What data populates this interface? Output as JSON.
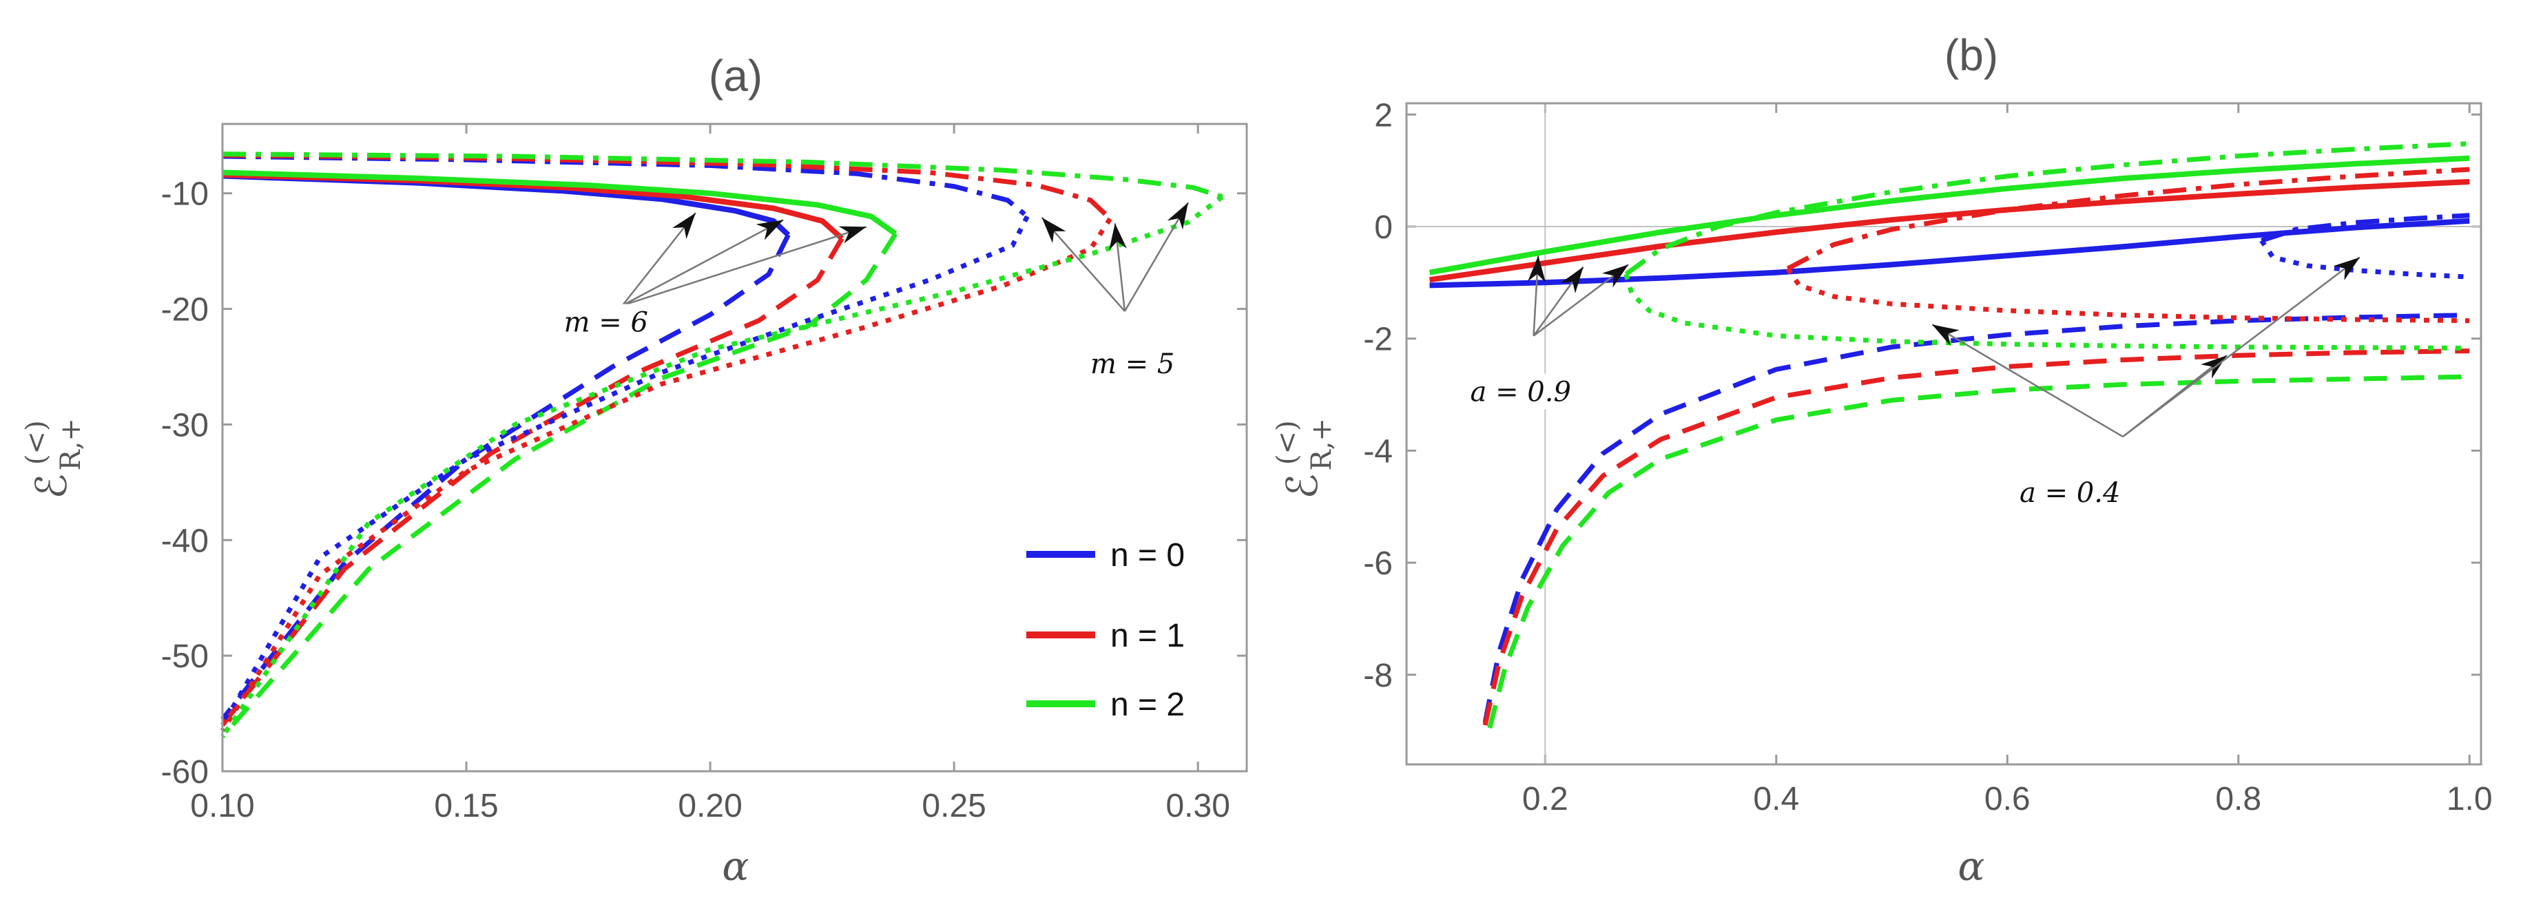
{
  "chart_data": [
    {
      "panel": "(a)",
      "type": "line",
      "title": "(a)",
      "xlabel": "α",
      "ylabel": {
        "main": "ℰ",
        "sub": "R,+",
        "sup": "(<)"
      },
      "xlim": [
        0.1,
        0.31
      ],
      "ylim": [
        -60,
        -4
      ],
      "xticks": [
        0.1,
        0.15,
        0.2,
        0.25,
        0.3
      ],
      "xtick_labels": [
        "0.10",
        "0.15",
        "0.20",
        "0.25",
        "0.30"
      ],
      "yticks": [
        -60,
        -50,
        -40,
        -30,
        -20,
        -10
      ],
      "ytick_labels": [
        "-60",
        "-50",
        "-40",
        "-30",
        "-20",
        "-10"
      ],
      "legend": {
        "placement": "bottom-right",
        "entries": [
          {
            "label": "n = 0",
            "color": "#1f1fe6"
          },
          {
            "label": "n = 1",
            "color": "#e61f1f"
          },
          {
            "label": "n = 2",
            "color": "#1fe61f"
          }
        ]
      },
      "annotations": [
        {
          "text": "m = 6",
          "targets": [
            [
              0.197,
              -11.7
            ],
            [
              0.215,
              -12.3
            ],
            [
              0.232,
              -12.9
            ]
          ]
        },
        {
          "text": "m = 5",
          "targets": [
            [
              0.268,
              -12.1
            ],
            [
              0.283,
              -12.6
            ],
            [
              0.298,
              -10.8
            ]
          ]
        }
      ],
      "series": [
        {
          "name": "n=0, m=6 upper",
          "color": "#1f1fe6",
          "style": "solid",
          "x": [
            0.1,
            0.14,
            0.17,
            0.19,
            0.205,
            0.213,
            0.216
          ],
          "y": [
            -8.5,
            -9.1,
            -9.8,
            -10.5,
            -11.5,
            -12.4,
            -13.6
          ]
        },
        {
          "name": "n=0, m=6 lower",
          "color": "#1f1fe6",
          "style": "dashed",
          "x": [
            0.216,
            0.212,
            0.2,
            0.18,
            0.15,
            0.125,
            0.1
          ],
          "y": [
            -13.6,
            -17,
            -20.5,
            -25,
            -33,
            -42,
            -55.5
          ]
        },
        {
          "name": "n=1, m=6 upper",
          "color": "#e61f1f",
          "style": "solid",
          "x": [
            0.1,
            0.14,
            0.17,
            0.195,
            0.213,
            0.223,
            0.227
          ],
          "y": [
            -8.4,
            -8.9,
            -9.5,
            -10.3,
            -11.3,
            -12.4,
            -13.9
          ]
        },
        {
          "name": "n=1, m=6 lower",
          "color": "#e61f1f",
          "style": "dashed",
          "x": [
            0.227,
            0.222,
            0.21,
            0.185,
            0.155,
            0.125,
            0.1
          ],
          "y": [
            -13.9,
            -17.5,
            -21,
            -25.5,
            -32.5,
            -42.5,
            -56
          ]
        },
        {
          "name": "n=2, m=6 upper",
          "color": "#1fe61f",
          "style": "solid",
          "x": [
            0.1,
            0.14,
            0.175,
            0.2,
            0.222,
            0.233,
            0.238
          ],
          "y": [
            -8.2,
            -8.7,
            -9.3,
            -10,
            -11,
            -12,
            -13.5
          ]
        },
        {
          "name": "n=2, m=6 lower",
          "color": "#1fe61f",
          "style": "dashed",
          "x": [
            0.238,
            0.232,
            0.22,
            0.19,
            0.16,
            0.13,
            0.1
          ],
          "y": [
            -13.5,
            -17.5,
            -21.5,
            -26,
            -33,
            -42.5,
            -57
          ]
        },
        {
          "name": "n=0, m=5 upper",
          "color": "#1f1fe6",
          "style": "dashdot",
          "x": [
            0.1,
            0.15,
            0.2,
            0.23,
            0.25,
            0.261,
            0.265
          ],
          "y": [
            -6.8,
            -7.1,
            -7.6,
            -8.3,
            -9.4,
            -10.6,
            -12
          ]
        },
        {
          "name": "n=0, m=5 lower",
          "color": "#1f1fe6",
          "style": "dotted",
          "x": [
            0.265,
            0.262,
            0.245,
            0.22,
            0.19,
            0.15,
            0.12,
            0.1
          ],
          "y": [
            -12,
            -14.5,
            -17.5,
            -21,
            -25.5,
            -33,
            -41.5,
            -56
          ]
        },
        {
          "name": "n=1, m=5 upper",
          "color": "#e61f1f",
          "style": "dashdot",
          "x": [
            0.1,
            0.16,
            0.21,
            0.245,
            0.267,
            0.278,
            0.282
          ],
          "y": [
            -6.7,
            -7,
            -7.5,
            -8.2,
            -9.3,
            -10.6,
            -12.2
          ]
        },
        {
          "name": "n=1, m=5 lower",
          "color": "#e61f1f",
          "style": "dotted",
          "x": [
            0.282,
            0.278,
            0.26,
            0.23,
            0.19,
            0.15,
            0.12,
            0.1
          ],
          "y": [
            -12.2,
            -14.8,
            -18,
            -21.8,
            -26.5,
            -34,
            -43,
            -56.5
          ]
        },
        {
          "name": "n=2, m=5 upper",
          "color": "#1fe61f",
          "style": "dashdot",
          "x": [
            0.1,
            0.16,
            0.22,
            0.26,
            0.285,
            0.299,
            0.305
          ],
          "y": [
            -6.6,
            -6.8,
            -7.3,
            -8,
            -8.8,
            -9.5,
            -10.3
          ]
        },
        {
          "name": "n=2, m=5 lower",
          "color": "#1fe61f",
          "style": "dotted",
          "x": [
            0.305,
            0.298,
            0.28,
            0.25,
            0.2,
            0.16,
            0.13,
            0.1
          ],
          "y": [
            -10.3,
            -12.5,
            -15,
            -18.5,
            -23.5,
            -30,
            -38.5,
            -57
          ]
        }
      ]
    },
    {
      "panel": "(b)",
      "type": "line",
      "title": "(b)",
      "xlabel": "α",
      "ylabel": {
        "main": "ℰ",
        "sub": "R,+",
        "sup": "(<)"
      },
      "xlim": [
        0.08,
        1.01
      ],
      "ylim": [
        -9.6,
        2.2
      ],
      "xticks": [
        0.2,
        0.4,
        0.6,
        0.8,
        1.0
      ],
      "xtick_labels": [
        "0.2",
        "0.4",
        "0.6",
        "0.8",
        "1.0"
      ],
      "yticks": [
        -8,
        -6,
        -4,
        -2,
        0,
        2
      ],
      "ytick_labels": [
        "-8",
        "-6",
        "-4",
        "-2",
        "0",
        "2"
      ],
      "reference_lines": {
        "x": 0.2,
        "y": 0
      },
      "annotations": [
        {
          "text": "a = 0.9",
          "targets": [
            [
              0.194,
              -0.52
            ],
            [
              0.233,
              -0.72
            ],
            [
              0.272,
              -0.68
            ]
          ]
        },
        {
          "text": "a = 0.4",
          "targets": [
            [
              0.535,
              -1.75
            ],
            [
              0.79,
              -2.3
            ],
            [
              0.905,
              -0.55
            ]
          ]
        }
      ],
      "series": [
        {
          "name": "n=0, a=0.9 solid",
          "color": "#1f1fe6",
          "style": "solid",
          "x": [
            0.1,
            0.2,
            0.3,
            0.4,
            0.5,
            0.6,
            0.7,
            0.8,
            0.9,
            1.0
          ],
          "y": [
            -1.05,
            -1.0,
            -0.92,
            -0.82,
            -0.68,
            -0.52,
            -0.36,
            -0.18,
            -0.02,
            0.1
          ]
        },
        {
          "name": "n=1, a=0.9 solid",
          "color": "#e61f1f",
          "style": "solid",
          "x": [
            0.1,
            0.2,
            0.3,
            0.4,
            0.5,
            0.6,
            0.7,
            0.8,
            0.9,
            1.0
          ],
          "y": [
            -0.95,
            -0.65,
            -0.35,
            -0.1,
            0.12,
            0.3,
            0.45,
            0.58,
            0.7,
            0.8
          ]
        },
        {
          "name": "n=2, a=0.9 solid",
          "color": "#1fe61f",
          "style": "solid",
          "x": [
            0.1,
            0.2,
            0.3,
            0.4,
            0.5,
            0.6,
            0.7,
            0.8,
            0.9,
            1.0
          ],
          "y": [
            -0.82,
            -0.45,
            -0.1,
            0.2,
            0.46,
            0.68,
            0.86,
            1.0,
            1.12,
            1.22
          ]
        },
        {
          "name": "n=0, a=0.9 dashed",
          "color": "#1f1fe6",
          "style": "dashed",
          "x": [
            0.148,
            0.16,
            0.18,
            0.21,
            0.25,
            0.3,
            0.4,
            0.5,
            0.6,
            0.7,
            0.8,
            0.9,
            1.0
          ],
          "y": [
            -8.85,
            -7.6,
            -6.3,
            -5.05,
            -4.05,
            -3.35,
            -2.55,
            -2.15,
            -1.93,
            -1.78,
            -1.68,
            -1.62,
            -1.58
          ]
        },
        {
          "name": "n=1, a=0.9 dashed",
          "color": "#e61f1f",
          "style": "dashed",
          "x": [
            0.148,
            0.16,
            0.18,
            0.21,
            0.25,
            0.3,
            0.4,
            0.5,
            0.6,
            0.7,
            0.8,
            0.9,
            1.0
          ],
          "y": [
            -8.9,
            -7.8,
            -6.6,
            -5.4,
            -4.45,
            -3.8,
            -3.05,
            -2.7,
            -2.5,
            -2.38,
            -2.3,
            -2.25,
            -2.22
          ]
        },
        {
          "name": "n=2, a=0.9 dashed",
          "color": "#1fe61f",
          "style": "dashed",
          "x": [
            0.152,
            0.165,
            0.185,
            0.215,
            0.255,
            0.3,
            0.4,
            0.5,
            0.6,
            0.7,
            0.8,
            0.9,
            1.0
          ],
          "y": [
            -8.95,
            -7.9,
            -6.8,
            -5.7,
            -4.75,
            -4.15,
            -3.45,
            -3.1,
            -2.92,
            -2.82,
            -2.76,
            -2.72,
            -2.68
          ]
        },
        {
          "name": "n=0, a=0.4 dashdot",
          "color": "#1f1fe6",
          "style": "dashdot",
          "x": [
            0.82,
            0.85,
            0.9,
            0.95,
            1.0
          ],
          "y": [
            -0.25,
            -0.05,
            0.07,
            0.14,
            0.2
          ]
        },
        {
          "name": "n=0, a=0.4 dotted",
          "color": "#1f1fe6",
          "style": "dotted",
          "x": [
            0.82,
            0.83,
            0.86,
            0.9,
            0.95,
            1.0
          ],
          "y": [
            -0.25,
            -0.55,
            -0.7,
            -0.78,
            -0.85,
            -0.9
          ]
        },
        {
          "name": "n=1, a=0.4 dashdot",
          "color": "#e61f1f",
          "style": "dashdot",
          "x": [
            0.41,
            0.45,
            0.5,
            0.6,
            0.7,
            0.8,
            0.9,
            1.0
          ],
          "y": [
            -0.75,
            -0.32,
            -0.05,
            0.3,
            0.55,
            0.75,
            0.9,
            1.02
          ]
        },
        {
          "name": "n=1, a=0.4 dotted",
          "color": "#e61f1f",
          "style": "dotted",
          "x": [
            0.41,
            0.42,
            0.45,
            0.5,
            0.6,
            0.7,
            0.8,
            0.9,
            1.0
          ],
          "y": [
            -0.75,
            -1.05,
            -1.25,
            -1.38,
            -1.5,
            -1.58,
            -1.63,
            -1.66,
            -1.68
          ]
        },
        {
          "name": "n=2, a=0.4 dashdot",
          "color": "#1fe61f",
          "style": "dashdot",
          "x": [
            0.27,
            0.3,
            0.35,
            0.4,
            0.5,
            0.6,
            0.7,
            0.8,
            0.9,
            1.0
          ],
          "y": [
            -0.85,
            -0.4,
            0.0,
            0.25,
            0.62,
            0.9,
            1.1,
            1.26,
            1.38,
            1.48
          ]
        },
        {
          "name": "n=2, a=0.4 dotted",
          "color": "#1fe61f",
          "style": "dotted",
          "x": [
            0.27,
            0.275,
            0.29,
            0.32,
            0.4,
            0.5,
            0.6,
            0.7,
            0.8,
            0.9,
            1.0
          ],
          "y": [
            -0.85,
            -1.2,
            -1.5,
            -1.72,
            -1.95,
            -2.05,
            -2.1,
            -2.13,
            -2.15,
            -2.16,
            -2.17
          ]
        }
      ]
    }
  ]
}
